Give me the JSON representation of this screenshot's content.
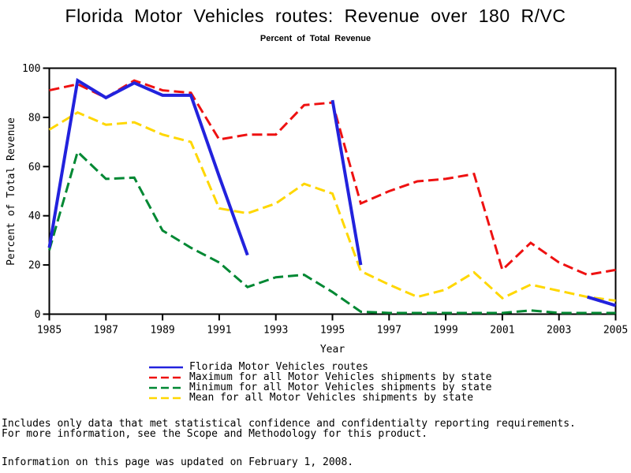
{
  "chart_data": {
    "type": "line",
    "title": "Florida Motor Vehicles routes: Revenue over 180 R/VC",
    "subtitle": "Percent of Total Revenue",
    "xlabel": "Year",
    "ylabel": "Percent of Total Revenue",
    "xlim": [
      1985,
      2005
    ],
    "ylim": [
      0,
      100
    ],
    "x_ticks": [
      1985,
      1987,
      1989,
      1991,
      1993,
      1995,
      1997,
      1999,
      2001,
      2003,
      2005
    ],
    "y_ticks": [
      0,
      20,
      40,
      60,
      80,
      100
    ],
    "grid": false,
    "frame": true,
    "legend_position": "bottom",
    "axis_color": "#000000",
    "series": [
      {
        "name": "Maximum for all Motor Vehicles shipments by state",
        "color": "#ee1111",
        "style": "dashed",
        "width": 3,
        "segments": [
          {
            "x": [
              1985,
              1986,
              1987,
              1988,
              1989,
              1990,
              1991,
              1992,
              1993,
              1994,
              1995,
              1996,
              1997,
              1998,
              1999,
              2000,
              2001,
              2002,
              2003,
              2004,
              2005
            ],
            "y": [
              91,
              93.5,
              88,
              95,
              91,
              90,
              71,
              73,
              73,
              85,
              86,
              45,
              50,
              54,
              55,
              57,
              18,
              29,
              21,
              16,
              18
            ]
          }
        ]
      },
      {
        "name": "Minimum for all Motor Vehicles shipments by state",
        "color": "#008833",
        "style": "dashed",
        "width": 3,
        "segments": [
          {
            "x": [
              1985,
              1986,
              1987,
              1988,
              1989,
              1990,
              1991,
              1992,
              1993,
              1994,
              1995,
              1996,
              1997,
              1998,
              1999,
              2000,
              2001,
              2002,
              2003,
              2004,
              2005
            ],
            "y": [
              26,
              66,
              55,
              55.5,
              34,
              27,
              21,
              11,
              15,
              16,
              9,
              1,
              0.5,
              0.5,
              0.5,
              0.5,
              0.5,
              1.5,
              0.5,
              0.5,
              0.5
            ]
          }
        ]
      },
      {
        "name": "Mean for all Motor Vehicles shipments by state",
        "color": "#ffd700",
        "style": "dashed",
        "width": 3,
        "segments": [
          {
            "x": [
              1985,
              1986,
              1987,
              1988,
              1989,
              1990,
              1991,
              1992,
              1993,
              1994,
              1995,
              1996,
              1997,
              1998,
              1999,
              2000,
              2001,
              2002,
              2003,
              2004,
              2005
            ],
            "y": [
              75,
              82,
              77,
              78,
              73,
              70,
              43,
              41,
              45,
              53,
              49,
              17.5,
              12,
              7,
              10,
              17,
              6.5,
              12,
              9.5,
              7,
              5.5
            ]
          }
        ]
      },
      {
        "name": "Florida Motor Vehicles routes",
        "color": "#2222dd",
        "style": "solid",
        "width": 4,
        "segments": [
          {
            "x": [
              1985,
              1986,
              1987,
              1988,
              1989,
              1990,
              1991,
              1992
            ],
            "y": [
              27,
              95,
              88,
              94,
              89,
              89,
              56,
              24
            ]
          },
          {
            "x": [
              1995,
              1996
            ],
            "y": [
              87,
              20
            ]
          },
          {
            "x": [
              2004,
              2005
            ],
            "y": [
              7,
              3.5
            ]
          }
        ]
      }
    ],
    "legend_order": [
      3,
      0,
      1,
      2
    ]
  },
  "notes": {
    "line1": "Includes only data that met statistical confidence and confidentialty reporting requirements.",
    "line2": "For more information, see the Scope and Methodology for this product.",
    "line3": "Information on this page was updated on February 1, 2008."
  }
}
